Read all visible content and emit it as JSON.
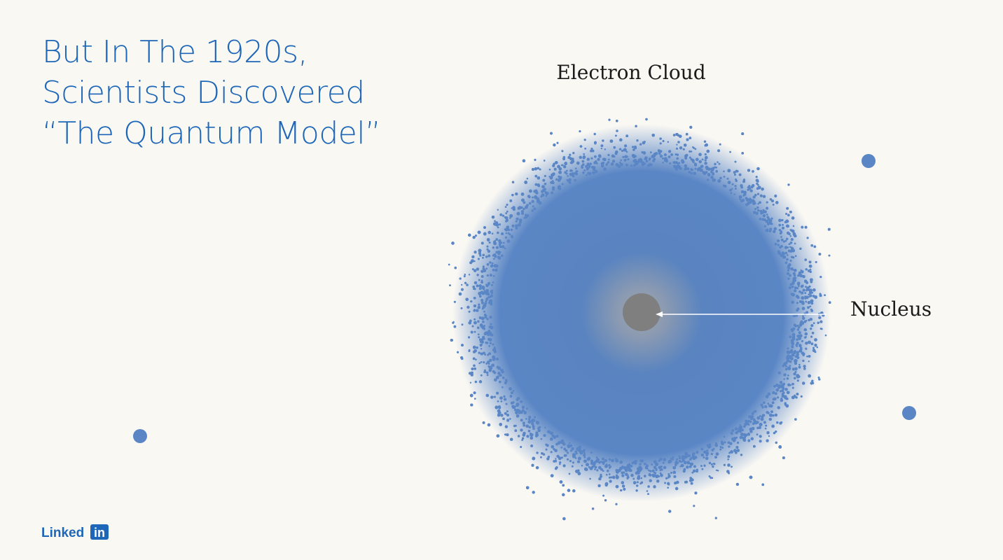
{
  "slide": {
    "title": {
      "lines": [
        "But In The 1920s,",
        "Scientists Discovered",
        "“The Quantum Model”"
      ]
    },
    "labels": {
      "cloud": "Electron Cloud",
      "nucleus": "Nucleus"
    },
    "logo": {
      "text": "Linked",
      "box": "in"
    }
  }
}
